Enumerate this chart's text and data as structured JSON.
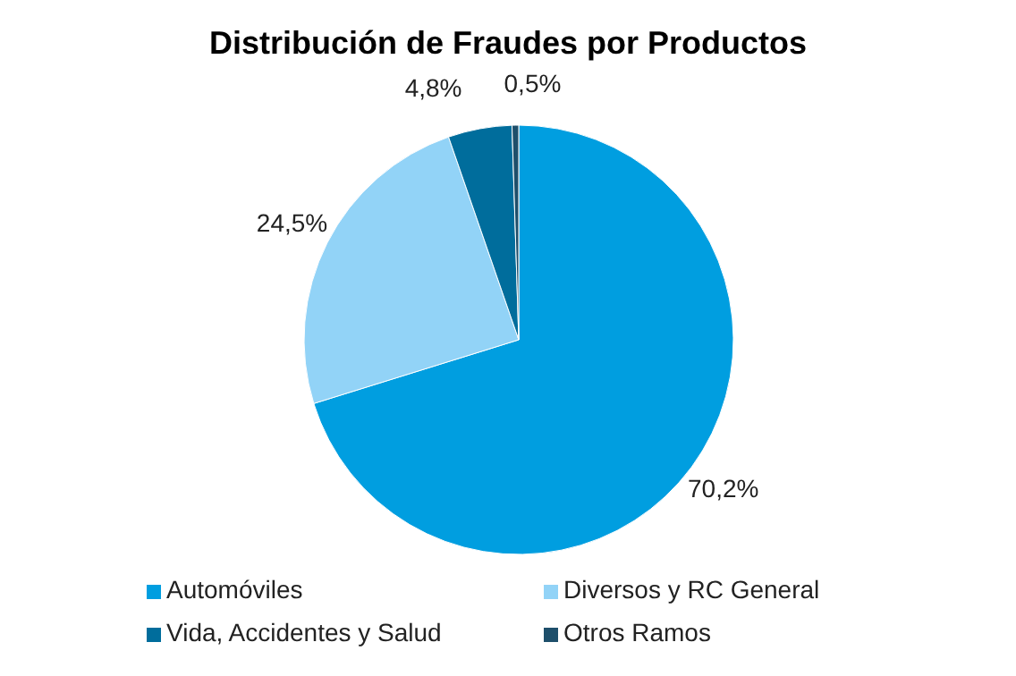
{
  "chart_data": {
    "type": "pie",
    "title": "Distribución de Fraudes por Productos",
    "categories": [
      "Automóviles",
      "Diversos y RC General",
      "Vida, Accidentes y Salud",
      "Otros Ramos"
    ],
    "values": [
      70.2,
      24.5,
      4.8,
      0.5
    ],
    "value_labels": [
      "70,2%",
      "24,5%",
      "4,8%",
      "0,5%"
    ],
    "colors": [
      "#009ee0",
      "#92d3f7",
      "#006d9c",
      "#1e4f6b"
    ],
    "legend": "bottom"
  }
}
